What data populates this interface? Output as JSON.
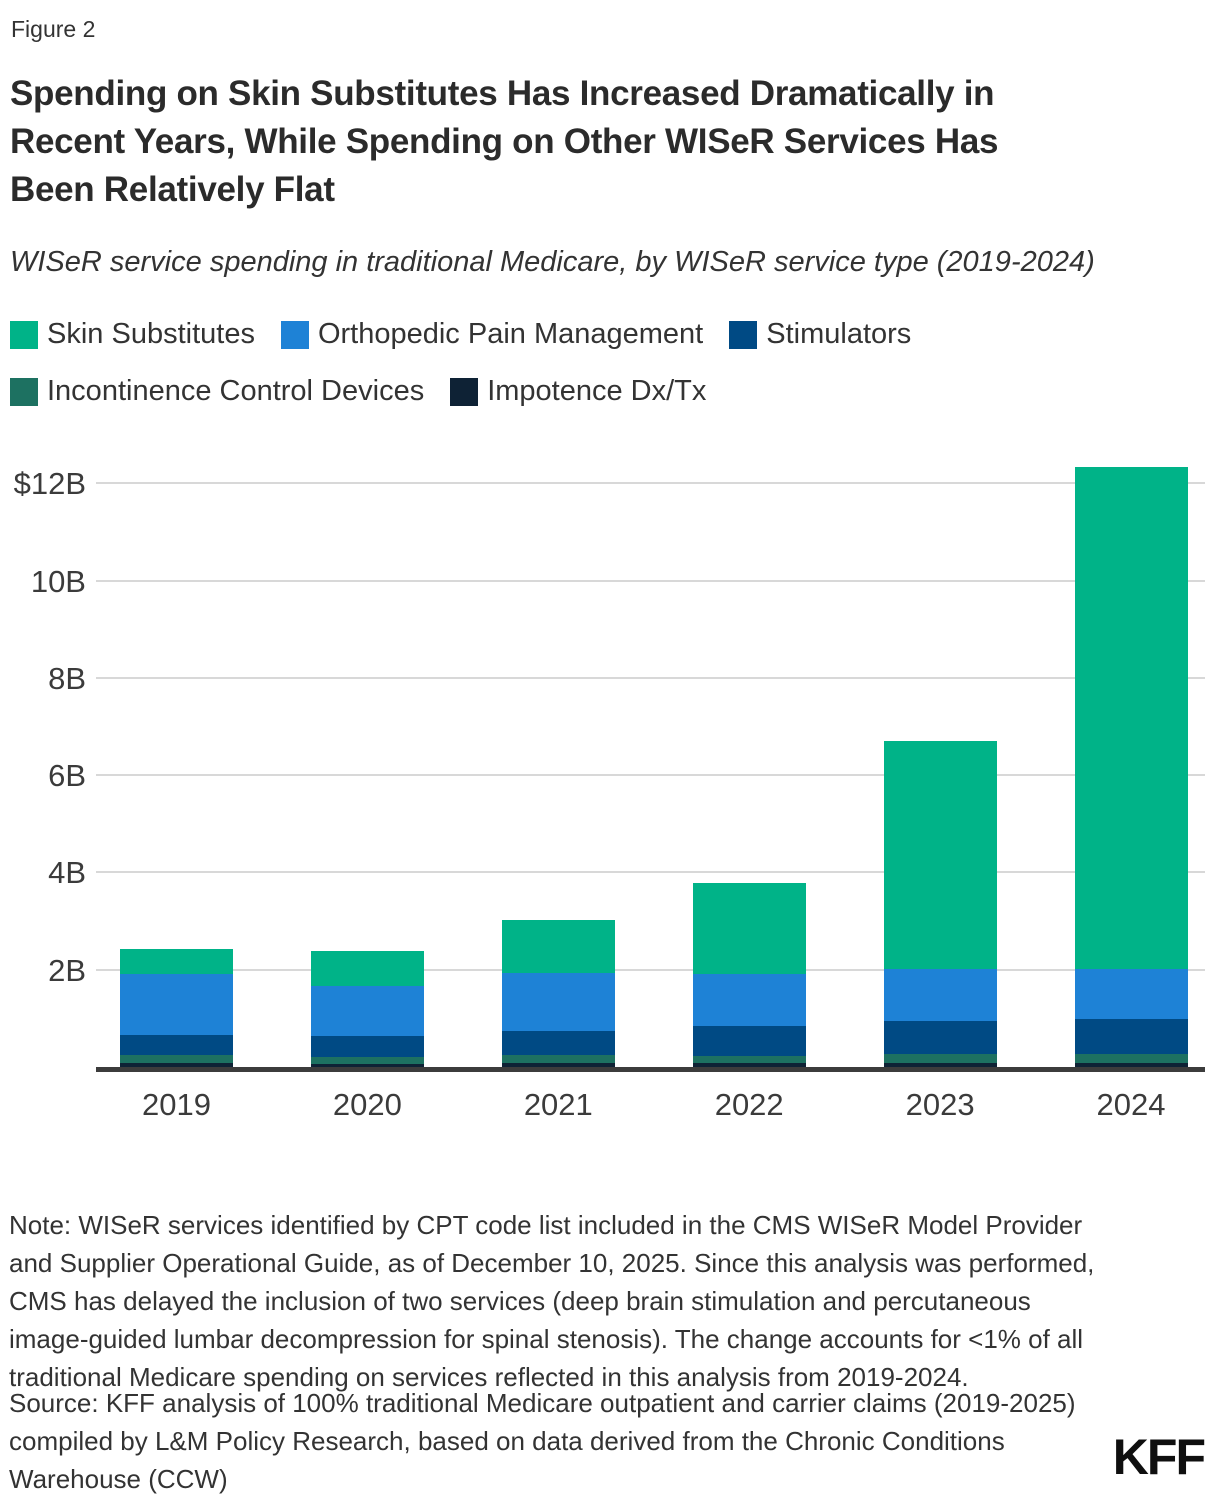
{
  "figure_label": "Figure 2",
  "title_lines": [
    "Spending on Skin Substitutes Has Increased Dramatically in",
    "Recent Years, While Spending on Other WISeR Services Has",
    "Been Relatively Flat"
  ],
  "subtitle": "WISeR service spending in traditional Medicare, by WISeR service type (2019-2024)",
  "legend": [
    {
      "label": "Skin Substitutes",
      "color": "#00b388"
    },
    {
      "label": "Orthopedic Pain Management",
      "color": "#1e82d6"
    },
    {
      "label": "Stimulators",
      "color": "#004a84"
    },
    {
      "label": "Incontinence Control Devices",
      "color": "#1d7161"
    },
    {
      "label": "Impotence Dx/Tx",
      "color": "#0e2235"
    }
  ],
  "chart_data": {
    "type": "bar",
    "stacked": true,
    "title": "WISeR service spending in traditional Medicare, by WISeR service type (2019-2024)",
    "categories": [
      "2019",
      "2020",
      "2021",
      "2022",
      "2023",
      "2024"
    ],
    "series": [
      {
        "name": "Impotence Dx/Tx",
        "color": "#0e2235",
        "values": [
          0.09,
          0.07,
          0.08,
          0.08,
          0.09,
          0.09
        ]
      },
      {
        "name": "Incontinence Control Devices",
        "color": "#1d7161",
        "values": [
          0.15,
          0.14,
          0.16,
          0.15,
          0.17,
          0.17
        ]
      },
      {
        "name": "Stimulators",
        "color": "#004a84",
        "values": [
          0.42,
          0.42,
          0.5,
          0.62,
          0.69,
          0.73
        ]
      },
      {
        "name": "Orthopedic Pain Management",
        "color": "#1e82d6",
        "values": [
          1.25,
          1.04,
          1.2,
          1.06,
          1.06,
          1.02
        ]
      },
      {
        "name": "Skin Substitutes",
        "color": "#00b388",
        "values": [
          0.52,
          0.71,
          1.09,
          1.87,
          4.7,
          10.32
        ]
      }
    ],
    "totals": [
      2.43,
      2.38,
      3.03,
      3.78,
      6.71,
      12.33
    ],
    "unit": "billions of dollars",
    "ylim": [
      0,
      12.5
    ],
    "y_ticks": [
      {
        "value": 2,
        "label": "2B"
      },
      {
        "value": 4,
        "label": "4B"
      },
      {
        "value": 6,
        "label": "6B"
      },
      {
        "value": 8,
        "label": "8B"
      },
      {
        "value": 10,
        "label": "10B"
      },
      {
        "value": 12,
        "label": "$12B"
      }
    ],
    "grid": true,
    "legend_position": "top"
  },
  "note_lines": [
    "Note: WISeR services identified by CPT code list included in the CMS WISeR Model Provider",
    "and Supplier Operational Guide, as of December 10, 2025. Since this analysis was performed,",
    "CMS has delayed the inclusion of two services (deep brain stimulation and percutaneous",
    "image-guided lumbar decompression for spinal stenosis). The change accounts for <1% of all",
    "traditional Medicare spending on services reflected in this analysis from 2019-2024."
  ],
  "source_lines": [
    "Source: KFF analysis of 100% traditional Medicare outpatient and carrier claims (2019-2025)",
    "compiled by L&M Policy Research, based on data derived from the Chronic Conditions",
    "Warehouse (CCW)"
  ],
  "logo_text": "KFF"
}
